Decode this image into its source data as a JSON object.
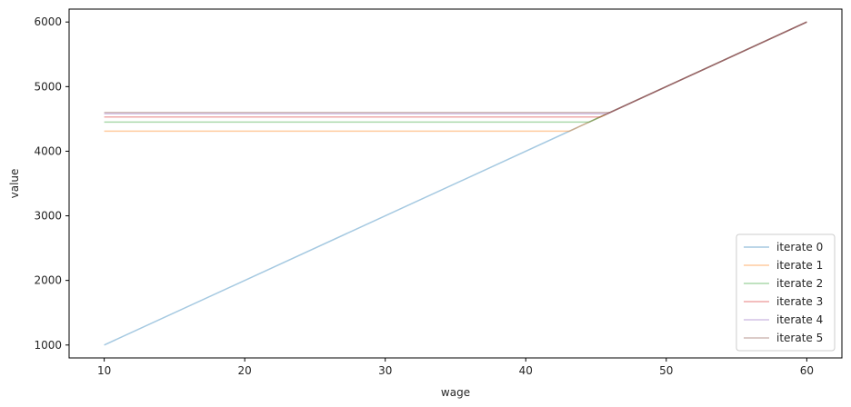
{
  "chart_data": {
    "type": "line",
    "title": "",
    "xlabel": "wage",
    "ylabel": "value",
    "xlim": [
      7.5,
      62.5
    ],
    "ylim": [
      800,
      6200
    ],
    "xticks": [
      10,
      20,
      30,
      40,
      50,
      60
    ],
    "yticks": [
      1000,
      2000,
      3000,
      4000,
      5000,
      6000
    ],
    "grid": false,
    "legend_position": "lower-right",
    "series": [
      {
        "name": "iterate 0",
        "color": "#1f77b4",
        "points": [
          [
            10,
            1000
          ],
          [
            60,
            6000
          ]
        ]
      },
      {
        "name": "iterate 1",
        "color": "#ff7f0e",
        "points": [
          [
            10,
            4310
          ],
          [
            43.1,
            4310
          ],
          [
            60,
            6000
          ]
        ]
      },
      {
        "name": "iterate 2",
        "color": "#2ca02c",
        "points": [
          [
            10,
            4450
          ],
          [
            44.5,
            4450
          ],
          [
            60,
            6000
          ]
        ]
      },
      {
        "name": "iterate 3",
        "color": "#d62728",
        "points": [
          [
            10,
            4530
          ],
          [
            45.3,
            4530
          ],
          [
            60,
            6000
          ]
        ]
      },
      {
        "name": "iterate 4",
        "color": "#9467bd",
        "points": [
          [
            10,
            4580
          ],
          [
            45.8,
            4580
          ],
          [
            60,
            6000
          ]
        ]
      },
      {
        "name": "iterate 5",
        "color": "#8c564b",
        "points": [
          [
            10,
            4600
          ],
          [
            46.0,
            4600
          ],
          [
            60,
            6000
          ]
        ]
      }
    ]
  }
}
